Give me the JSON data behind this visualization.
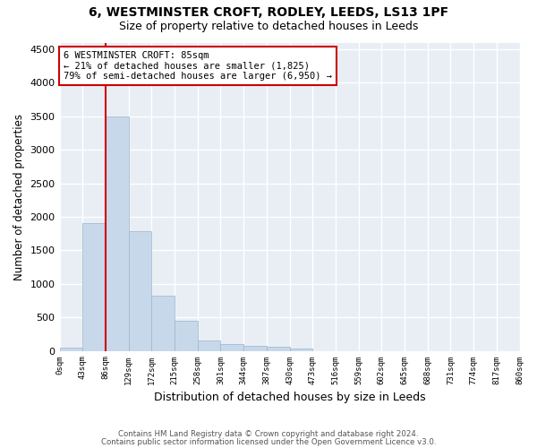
{
  "title1": "6, WESTMINSTER CROFT, RODLEY, LEEDS, LS13 1PF",
  "title2": "Size of property relative to detached houses in Leeds",
  "xlabel": "Distribution of detached houses by size in Leeds",
  "ylabel": "Number of detached properties",
  "footer1": "Contains HM Land Registry data © Crown copyright and database right 2024.",
  "footer2": "Contains public sector information licensed under the Open Government Licence v3.0.",
  "annotation_line1": "6 WESTMINSTER CROFT: 85sqm",
  "annotation_line2": "← 21% of detached houses are smaller (1,825)",
  "annotation_line3": "79% of semi-detached houses are larger (6,950) →",
  "bar_color": "#c8d8eb",
  "bar_edge_color": "#9ab5cc",
  "line_color": "#cc0000",
  "annotation_box_edge_color": "#cc0000",
  "background_color": "#e8eef4",
  "grid_color": "#ffffff",
  "bin_labels": [
    "0sqm",
    "43sqm",
    "86sqm",
    "129sqm",
    "172sqm",
    "215sqm",
    "258sqm",
    "301sqm",
    "344sqm",
    "387sqm",
    "430sqm",
    "473sqm",
    "516sqm",
    "559sqm",
    "602sqm",
    "645sqm",
    "688sqm",
    "731sqm",
    "774sqm",
    "817sqm",
    "860sqm"
  ],
  "bar_values": [
    50,
    1900,
    3500,
    1780,
    820,
    450,
    160,
    100,
    70,
    55,
    40,
    0,
    0,
    0,
    0,
    0,
    0,
    0,
    0,
    0
  ],
  "ylim": [
    0,
    4600
  ],
  "yticks": [
    0,
    500,
    1000,
    1500,
    2000,
    2500,
    3000,
    3500,
    4000,
    4500
  ],
  "vline_x": 2.0
}
